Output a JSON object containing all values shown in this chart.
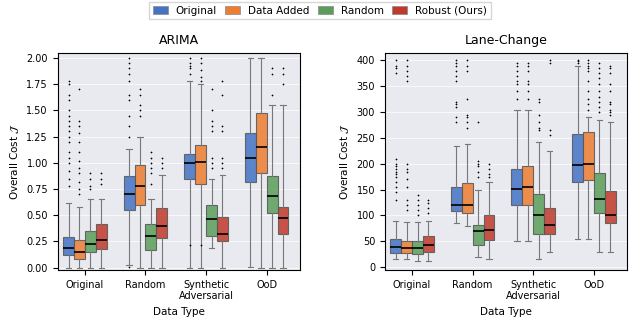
{
  "title_left": "ARIMA",
  "title_right": "Lane-Change",
  "ylabel": "Overall Cost $\\mathcal{J}$",
  "xlabel": "Data Type",
  "legend_labels": [
    "Original",
    "Data Added",
    "Random",
    "Robust (Ours)"
  ],
  "colors": [
    "#4472c4",
    "#ed7d31",
    "#5a9e5a",
    "#c0392b"
  ],
  "group_labels": [
    "Original",
    "Random",
    "Synthetic\nAdversarial",
    "OoD"
  ],
  "background_color": "#e8eaf0",
  "arima": {
    "Blue_orig": {
      "whislo": 0.0,
      "q1": 0.12,
      "med": 0.19,
      "q3": 0.29,
      "whishi": 0.62,
      "fliers_high": [
        0.78,
        0.85,
        0.92,
        1.0,
        1.05,
        1.1,
        1.2,
        1.25,
        1.3,
        1.35,
        1.4,
        1.45,
        1.5,
        1.6,
        1.65,
        1.75,
        1.78
      ]
    },
    "Orange_orig": {
      "whislo": 0.0,
      "q1": 0.08,
      "med": 0.15,
      "q3": 0.26,
      "whishi": 0.58,
      "fliers_high": [
        0.7,
        0.75,
        0.82,
        0.9,
        0.95,
        1.02,
        1.1,
        1.2,
        1.28,
        1.35,
        1.4,
        1.7
      ]
    },
    "Green_orig": {
      "whislo": 0.0,
      "q1": 0.15,
      "med": 0.23,
      "q3": 0.35,
      "whishi": 0.65,
      "fliers_high": [
        0.75,
        0.78,
        0.85,
        0.9
      ]
    },
    "Red_orig": {
      "whislo": 0.0,
      "q1": 0.18,
      "med": 0.26,
      "q3": 0.42,
      "whishi": 0.65,
      "fliers_high": [
        0.8,
        0.85,
        0.9
      ]
    },
    "Blue_rand": {
      "whislo": 0.03,
      "q1": 0.55,
      "med": 0.7,
      "q3": 0.87,
      "whishi": 1.13,
      "fliers_high": [
        1.25,
        1.35,
        1.45,
        1.6,
        1.65,
        1.78,
        1.85,
        1.9,
        1.95,
        2.0
      ],
      "fliers_low": [
        0.01
      ]
    },
    "Orange_rand": {
      "whislo": 0.0,
      "q1": 0.6,
      "med": 0.78,
      "q3": 0.98,
      "whishi": 1.25,
      "fliers_high": [
        1.45,
        1.5,
        1.55,
        1.65,
        1.7
      ]
    },
    "Green_rand": {
      "whislo": 0.0,
      "q1": 0.17,
      "med": 0.3,
      "q3": 0.42,
      "whishi": 0.65,
      "fliers_high": [
        0.8,
        0.9,
        0.95,
        1.0,
        1.05,
        1.1
      ]
    },
    "Red_rand": {
      "whislo": 0.0,
      "q1": 0.28,
      "med": 0.4,
      "q3": 0.57,
      "whishi": 0.88,
      "fliers_high": [
        0.95,
        1.0,
        1.05
      ]
    },
    "Blue_syn": {
      "whislo": 0.0,
      "q1": 0.85,
      "med": 1.0,
      "q3": 1.08,
      "whishi": 1.78,
      "fliers_high": [
        1.85,
        1.9,
        1.92,
        1.95,
        2.0
      ],
      "fliers_low": [
        0.22
      ]
    },
    "Orange_syn": {
      "whislo": 0.0,
      "q1": 0.8,
      "med": 1.01,
      "q3": 1.17,
      "whishi": 1.75,
      "fliers_high": [
        1.78,
        1.82,
        1.88,
        1.95,
        2.0
      ],
      "fliers_low": [
        0.22
      ]
    },
    "Green_syn": {
      "whislo": 0.19,
      "q1": 0.3,
      "med": 0.46,
      "q3": 0.6,
      "whishi": 0.85,
      "fliers_high": [
        0.95,
        1.0,
        1.05,
        1.3,
        1.35,
        1.4,
        1.5,
        1.7
      ]
    },
    "Red_syn": {
      "whislo": 0.0,
      "q1": 0.25,
      "med": 0.32,
      "q3": 0.48,
      "whishi": 0.88,
      "fliers_high": [
        0.95,
        1.0,
        1.05,
        1.3,
        1.35,
        1.65,
        1.78
      ]
    },
    "Blue_ood": {
      "whislo": 0.01,
      "q1": 0.82,
      "med": 1.05,
      "q3": 1.28,
      "whishi": 2.0
    },
    "Orange_ood": {
      "whislo": 0.0,
      "q1": 0.9,
      "med": 1.15,
      "q3": 1.47,
      "whishi": 2.0
    },
    "Green_ood": {
      "whislo": 0.0,
      "q1": 0.52,
      "med": 0.68,
      "q3": 0.87,
      "whishi": 1.55,
      "fliers_high": [
        1.65,
        1.85,
        1.9
      ]
    },
    "Red_ood": {
      "whislo": 0.0,
      "q1": 0.32,
      "med": 0.47,
      "q3": 0.58,
      "whishi": 1.55,
      "fliers_high": [
        1.75,
        1.85,
        1.9
      ]
    }
  },
  "lanechange": {
    "Blue_orig": {
      "whislo": 15,
      "q1": 28,
      "med": 40,
      "q3": 55,
      "whishi": 90,
      "fliers_high": [
        130,
        145,
        155,
        165,
        175,
        180,
        185,
        190,
        195,
        200,
        210,
        375,
        385,
        390,
        400
      ]
    },
    "Orange_orig": {
      "whislo": 15,
      "q1": 27,
      "med": 38,
      "q3": 50,
      "whishi": 88,
      "fliers_high": [
        110,
        120,
        130,
        155,
        170,
        185,
        190,
        200,
        360,
        370,
        380,
        390,
        400
      ]
    },
    "Green_orig": {
      "whislo": 12,
      "q1": 26,
      "med": 37,
      "q3": 50,
      "whishi": 88,
      "fliers_high": [
        100,
        110,
        120,
        130,
        140
      ]
    },
    "Red_orig": {
      "whislo": 12,
      "q1": 30,
      "med": 42,
      "q3": 60,
      "whishi": 90,
      "fliers_high": [
        105,
        115,
        125,
        130
      ]
    },
    "Blue_rand": {
      "whislo": 85,
      "q1": 108,
      "med": 120,
      "q3": 155,
      "whishi": 235,
      "fliers_high": [
        280,
        290,
        310,
        315,
        320,
        360,
        370,
        380,
        390,
        395,
        400
      ]
    },
    "Orange_rand": {
      "whislo": 80,
      "q1": 105,
      "med": 120,
      "q3": 162,
      "whishi": 238,
      "fliers_high": [
        270,
        280,
        290,
        295,
        325,
        380,
        390,
        400
      ]
    },
    "Green_rand": {
      "whislo": 20,
      "q1": 42,
      "med": 70,
      "q3": 82,
      "whishi": 150,
      "fliers_high": [
        175,
        185,
        195,
        200,
        205,
        280
      ]
    },
    "Red_rand": {
      "whislo": 15,
      "q1": 52,
      "med": 72,
      "q3": 100,
      "whishi": 165,
      "fliers_high": [
        175,
        180,
        190,
        200
      ]
    },
    "Blue_syn": {
      "whislo": 50,
      "q1": 120,
      "med": 152,
      "q3": 190,
      "whishi": 305,
      "fliers_high": [
        325,
        340,
        355,
        360,
        370,
        380,
        390,
        395
      ]
    },
    "Orange_syn": {
      "whislo": 50,
      "q1": 120,
      "med": 155,
      "q3": 195,
      "whishi": 305,
      "fliers_high": [
        325,
        340,
        355,
        360,
        380,
        390,
        395
      ]
    },
    "Green_syn": {
      "whislo": 15,
      "q1": 65,
      "med": 100,
      "q3": 142,
      "whishi": 242,
      "fliers_high": [
        265,
        270,
        280,
        295,
        320,
        325
      ]
    },
    "Red_syn": {
      "whislo": 30,
      "q1": 65,
      "med": 82,
      "q3": 115,
      "whishi": 225,
      "fliers_high": [
        255,
        265,
        395,
        400
      ]
    },
    "Blue_ood": {
      "whislo": 55,
      "q1": 165,
      "med": 198,
      "q3": 258,
      "whishi": 390,
      "fliers_high": [
        395,
        398,
        400
      ]
    },
    "Orange_ood": {
      "whislo": 55,
      "q1": 168,
      "med": 200,
      "q3": 262,
      "whishi": 290,
      "fliers_high": [
        305,
        315,
        325,
        340,
        360,
        380,
        385,
        390,
        395,
        400
      ]
    },
    "Green_ood": {
      "whislo": 30,
      "q1": 105,
      "med": 132,
      "q3": 182,
      "whishi": 285,
      "fliers_high": [
        300,
        310,
        320,
        330,
        340,
        355,
        365,
        375,
        385,
        395
      ]
    },
    "Red_ood": {
      "whislo": 30,
      "q1": 85,
      "med": 100,
      "q3": 148,
      "whishi": 280,
      "fliers_high": [
        295,
        300,
        305,
        315,
        320,
        340,
        355,
        375,
        385,
        390
      ]
    }
  },
  "arima_group_keys": [
    [
      "Blue_orig",
      "Orange_orig",
      "Green_orig",
      "Red_orig"
    ],
    [
      "Blue_rand",
      "Orange_rand",
      "Green_rand",
      "Red_rand"
    ],
    [
      "Blue_syn",
      "Orange_syn",
      "Green_syn",
      "Red_syn"
    ],
    [
      "Blue_ood",
      "Orange_ood",
      "Green_ood",
      "Red_ood"
    ]
  ],
  "lc_group_keys": [
    [
      "Blue_orig",
      "Orange_orig",
      "Green_orig",
      "Red_orig"
    ],
    [
      "Blue_rand",
      "Orange_rand",
      "Green_rand",
      "Red_rand"
    ],
    [
      "Blue_syn",
      "Orange_syn",
      "Green_syn",
      "Red_syn"
    ],
    [
      "Blue_ood",
      "Orange_ood",
      "Green_ood",
      "Red_ood"
    ]
  ],
  "arima_ylim": [
    -0.02,
    2.05
  ],
  "arima_yticks": [
    0.0,
    0.25,
    0.5,
    0.75,
    1.0,
    1.25,
    1.5,
    1.75,
    2.0
  ],
  "lc_ylim": [
    -5,
    415
  ],
  "lc_yticks": [
    0,
    50,
    100,
    150,
    200,
    250,
    300,
    350,
    400
  ],
  "group_positions": [
    1.0,
    2.0,
    3.0,
    4.0
  ],
  "offsets": [
    -0.27,
    -0.09,
    0.09,
    0.27
  ],
  "box_width": 0.18
}
